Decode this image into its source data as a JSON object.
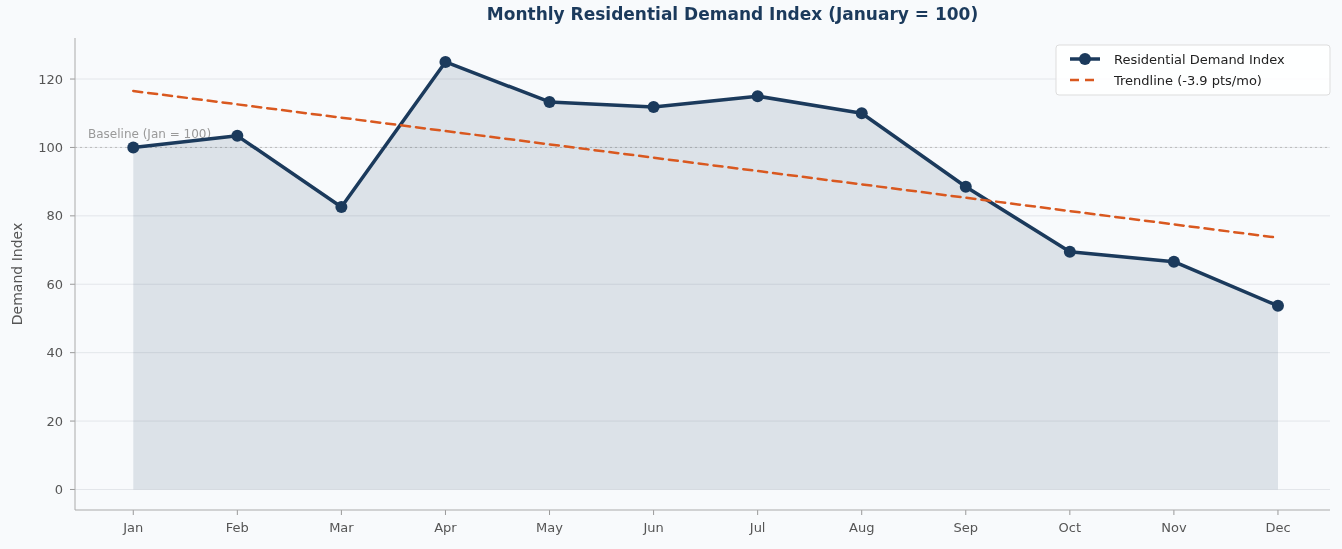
{
  "chart_data": {
    "type": "area",
    "title": "Monthly Residential Demand Index (January = 100)",
    "ylabel": "Demand Index",
    "categories": [
      "Jan",
      "Feb",
      "Mar",
      "Apr",
      "May",
      "Jun",
      "Jul",
      "Aug",
      "Sep",
      "Oct",
      "Nov",
      "Dec"
    ],
    "series": [
      {
        "name": "Residential Demand Index",
        "color": "#1b3a5c",
        "marker": "circle",
        "line_style": "solid",
        "values": [
          100,
          103.4,
          82.6,
          125,
          113.3,
          111.8,
          115,
          110,
          88.5,
          69.5,
          66.6,
          53.7
        ]
      },
      {
        "name": "Trendline (-3.9 pts/mo)",
        "type": "line",
        "color": "#d9581f",
        "marker": "none",
        "line_style": "dashed",
        "values": [
          116.5,
          112.6,
          108.7,
          104.8,
          100.9,
          97,
          93.1,
          89.2,
          85.3,
          81.4,
          77.5,
          73.6
        ]
      }
    ],
    "ylim": [
      -6,
      132
    ],
    "yticks": [
      0,
      20,
      40,
      60,
      80,
      100,
      120
    ],
    "grid": "y",
    "legend": "top right",
    "ref_lines": [
      {
        "axis": "y",
        "value": 100,
        "label": "Baseline (Jan = 100)",
        "color": "#bbbbbb",
        "line_style": "dotted"
      }
    ]
  }
}
